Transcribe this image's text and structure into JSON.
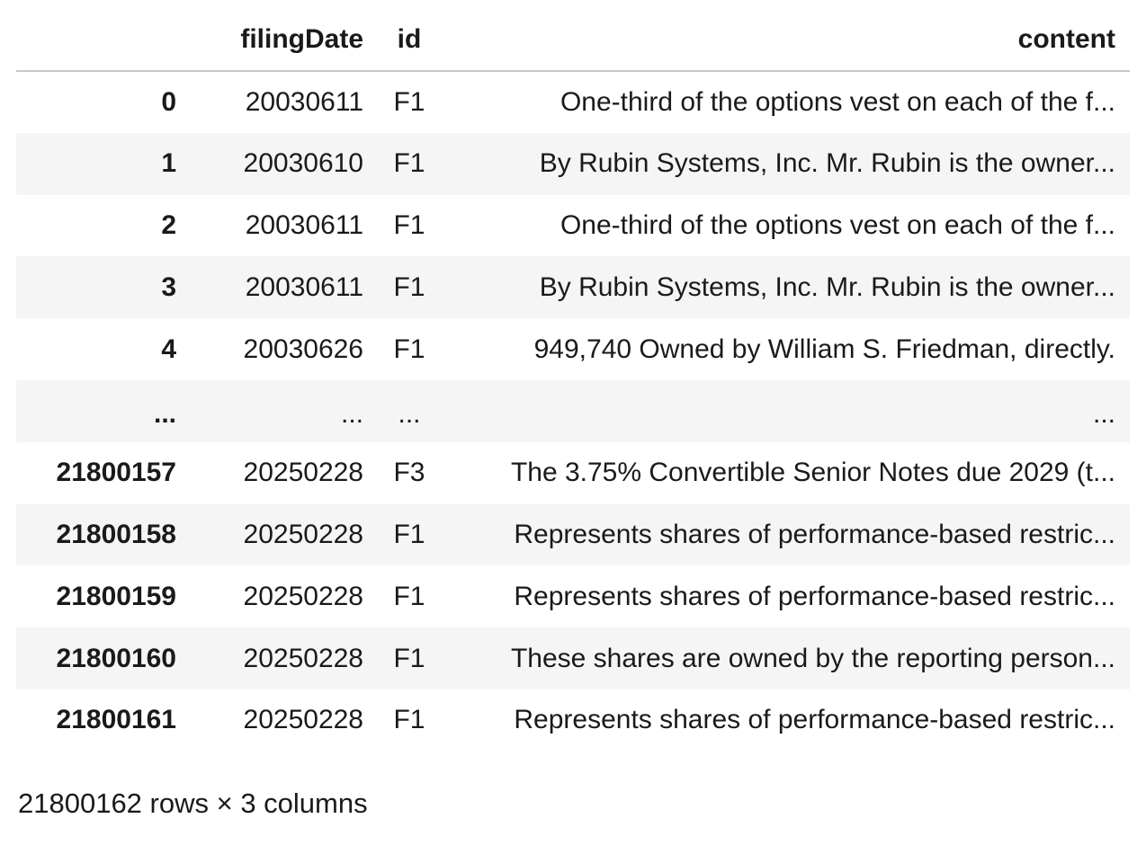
{
  "table": {
    "columns": {
      "index": "",
      "filingDate": "filingDate",
      "id": "id",
      "content": "content"
    },
    "rows": [
      {
        "index": "0",
        "filingDate": "20030611",
        "id": "F1",
        "content": "One-third of the options vest on each of the f..."
      },
      {
        "index": "1",
        "filingDate": "20030610",
        "id": "F1",
        "content": "By Rubin Systems, Inc. Mr. Rubin is the owner..."
      },
      {
        "index": "2",
        "filingDate": "20030611",
        "id": "F1",
        "content": "One-third of the options vest on each of the f..."
      },
      {
        "index": "3",
        "filingDate": "20030611",
        "id": "F1",
        "content": "By Rubin Systems, Inc. Mr. Rubin is the owner..."
      },
      {
        "index": "4",
        "filingDate": "20030626",
        "id": "F1",
        "content": "949,740 Owned by William S. Friedman, directly."
      },
      {
        "index": "...",
        "filingDate": "...",
        "id": "...",
        "content": "..."
      },
      {
        "index": "21800157",
        "filingDate": "20250228",
        "id": "F3",
        "content": "The 3.75% Convertible Senior Notes due 2029 (t..."
      },
      {
        "index": "21800158",
        "filingDate": "20250228",
        "id": "F1",
        "content": "Represents shares of performance-based restric..."
      },
      {
        "index": "21800159",
        "filingDate": "20250228",
        "id": "F1",
        "content": "Represents shares of performance-based restric..."
      },
      {
        "index": "21800160",
        "filingDate": "20250228",
        "id": "F1",
        "content": "These shares are owned by the reporting person..."
      },
      {
        "index": "21800161",
        "filingDate": "20250228",
        "id": "F1",
        "content": "Represents shares of performance-based restric..."
      }
    ]
  },
  "footer": {
    "shape": "21800162 rows × 3 columns"
  }
}
